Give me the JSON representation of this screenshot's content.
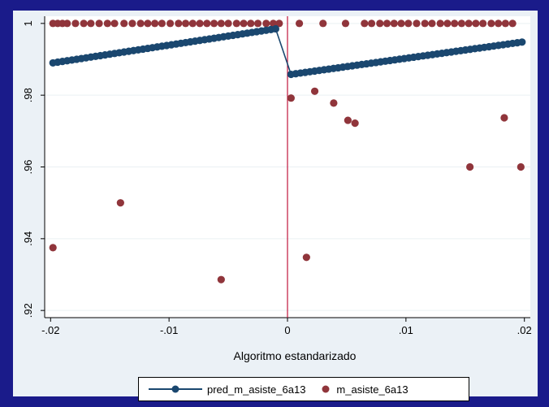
{
  "chart_data": {
    "type": "scatter",
    "title": "",
    "xlabel": "Algoritmo estandarizado",
    "ylabel": "",
    "xlim": [
      -0.0205,
      0.0205
    ],
    "ylim": [
      0.918,
      1.002
    ],
    "x_ticks": [
      -0.02,
      -0.01,
      0,
      0.01,
      0.02
    ],
    "x_tick_labels": [
      "-.02",
      "-.01",
      "0",
      ".01",
      ".02"
    ],
    "y_ticks": [
      0.92,
      0.94,
      0.96,
      0.98,
      1
    ],
    "y_tick_labels": [
      ".92",
      ".94",
      ".96",
      ".98",
      "1"
    ],
    "grid": true,
    "cutoff_line_x": 0,
    "cutoff_color": "#c0143c",
    "legend_position": "bottom",
    "series": [
      {
        "name": "pred_m_asiste_6a13",
        "style": "line-markers",
        "color": "#1a476f",
        "segments": [
          {
            "x_start": -0.0198,
            "x_end": -0.001,
            "y_start": 0.989,
            "y_end": 0.9985,
            "n_points": 48
          },
          {
            "x_start": 0.0003,
            "x_end": 0.0198,
            "y_start": 0.9858,
            "y_end": 0.9948,
            "n_points": 50
          }
        ]
      },
      {
        "name": "m_asiste_6a13",
        "style": "markers",
        "color": "#90353b",
        "points": [
          [
            -0.0198,
            1
          ],
          [
            -0.0194,
            1
          ],
          [
            -0.019,
            1
          ],
          [
            -0.0186,
            1
          ],
          [
            -0.0179,
            1
          ],
          [
            -0.0172,
            1
          ],
          [
            -0.0166,
            1
          ],
          [
            -0.0159,
            1
          ],
          [
            -0.0152,
            1
          ],
          [
            -0.0146,
            1
          ],
          [
            -0.0138,
            1
          ],
          [
            -0.0131,
            1
          ],
          [
            -0.0124,
            1
          ],
          [
            -0.0118,
            1
          ],
          [
            -0.0112,
            1
          ],
          [
            -0.0106,
            1
          ],
          [
            -0.0099,
            1
          ],
          [
            -0.0092,
            1
          ],
          [
            -0.0086,
            1
          ],
          [
            -0.008,
            1
          ],
          [
            -0.0074,
            1
          ],
          [
            -0.0068,
            1
          ],
          [
            -0.0062,
            1
          ],
          [
            -0.0056,
            1
          ],
          [
            -0.005,
            1
          ],
          [
            -0.0043,
            1
          ],
          [
            -0.0037,
            1
          ],
          [
            -0.0031,
            1
          ],
          [
            -0.0025,
            1
          ],
          [
            -0.0018,
            1
          ],
          [
            -0.0012,
            1
          ],
          [
            -0.0007,
            1
          ],
          [
            0.001,
            1
          ],
          [
            0.003,
            1
          ],
          [
            0.0049,
            1
          ],
          [
            0.0065,
            1
          ],
          [
            0.0071,
            1
          ],
          [
            0.0078,
            1
          ],
          [
            0.0084,
            1
          ],
          [
            0.009,
            1
          ],
          [
            0.0096,
            1
          ],
          [
            0.0102,
            1
          ],
          [
            0.0109,
            1
          ],
          [
            0.0116,
            1
          ],
          [
            0.0122,
            1
          ],
          [
            0.0129,
            1
          ],
          [
            0.0135,
            1
          ],
          [
            0.0141,
            1
          ],
          [
            0.0147,
            1
          ],
          [
            0.0153,
            1
          ],
          [
            0.0159,
            1
          ],
          [
            0.0165,
            1
          ],
          [
            0.0172,
            1
          ],
          [
            0.0178,
            1
          ],
          [
            0.0184,
            1
          ],
          [
            0.019,
            1
          ],
          [
            -0.0198,
            0.9375
          ],
          [
            -0.0141,
            0.95
          ],
          [
            -0.0056,
            0.9286
          ],
          [
            0.0003,
            0.9792
          ],
          [
            0.0016,
            0.9348
          ],
          [
            0.0023,
            0.9811
          ],
          [
            0.0039,
            0.9778
          ],
          [
            0.0051,
            0.973
          ],
          [
            0.0057,
            0.9722
          ],
          [
            0.0154,
            0.96
          ],
          [
            0.0183,
            0.9737
          ],
          [
            0.0197,
            0.96
          ]
        ]
      }
    ]
  }
}
